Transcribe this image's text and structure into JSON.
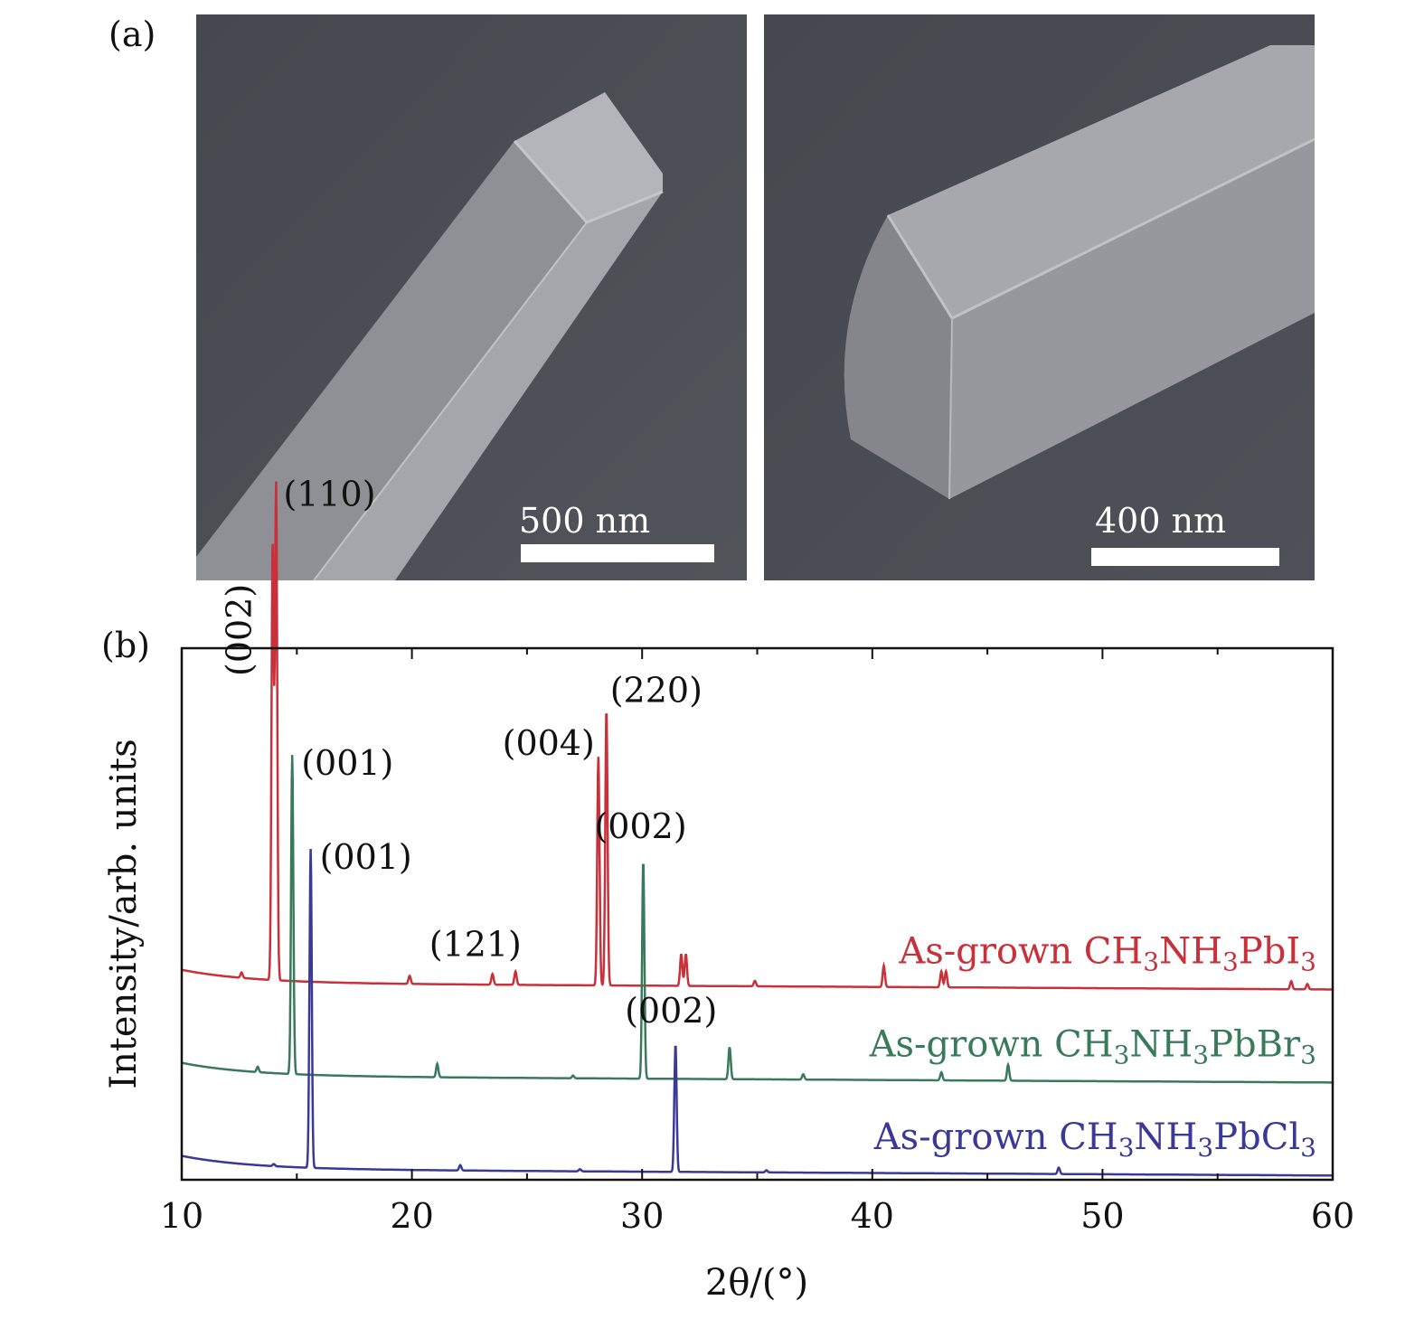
{
  "panel_a": {
    "label": "(a)",
    "images": [
      {
        "scale_label": "500 nm",
        "subject": "rectangular-microwire-sem-image"
      },
      {
        "scale_label": "400 nm",
        "subject": "rectangular-microwire-end-sem-image"
      }
    ]
  },
  "panel_b": {
    "label": "(b)"
  },
  "chart_data": {
    "type": "line",
    "xlabel": "2θ/(°)",
    "ylabel": "Intensity/arb. units",
    "xlim": [
      10,
      60
    ],
    "xticks": [
      10,
      20,
      30,
      40,
      50,
      60
    ],
    "grid": false,
    "series": [
      {
        "name": "As-grown CH3NH3PbI3",
        "label_main": "As-grown CH",
        "label_parts": [
          "As-grown CH",
          "3",
          "NH",
          "3",
          "PbI",
          "3"
        ],
        "color": "#c8303a",
        "baseline": 0.37,
        "peaks": [
          {
            "x": 12.6,
            "h": 0.01
          },
          {
            "x": 13.95,
            "h": 0.82
          },
          {
            "x": 14.1,
            "h": 0.93
          },
          {
            "x": 19.9,
            "h": 0.015
          },
          {
            "x": 23.5,
            "h": 0.02
          },
          {
            "x": 24.5,
            "h": 0.025
          },
          {
            "x": 28.1,
            "h": 0.43
          },
          {
            "x": 28.45,
            "h": 0.52
          },
          {
            "x": 31.7,
            "h": 0.06
          },
          {
            "x": 31.9,
            "h": 0.06
          },
          {
            "x": 34.9,
            "h": 0.01
          },
          {
            "x": 40.5,
            "h": 0.04
          },
          {
            "x": 43.0,
            "h": 0.03
          },
          {
            "x": 43.2,
            "h": 0.03
          },
          {
            "x": 58.2,
            "h": 0.015
          },
          {
            "x": 58.9,
            "h": 0.01
          }
        ],
        "peak_labels": [
          {
            "text": "(002)",
            "x": 13.95,
            "rotated": true
          },
          {
            "text": "(110)",
            "x": 14.1
          },
          {
            "text": "(121)",
            "x": 23.5
          },
          {
            "text": "(004)",
            "x": 28.1
          },
          {
            "text": "(220)",
            "x": 28.45
          }
        ]
      },
      {
        "name": "As-grown CH3NH3PbBr3",
        "label_parts": [
          "As-grown CH",
          "3",
          "NH",
          "3",
          "PbBr",
          "3"
        ],
        "color": "#3a7a5c",
        "baseline": 0.195,
        "peaks": [
          {
            "x": 13.3,
            "h": 0.01
          },
          {
            "x": 14.8,
            "h": 0.6
          },
          {
            "x": 21.1,
            "h": 0.025
          },
          {
            "x": 27.0,
            "h": 0.005
          },
          {
            "x": 30.05,
            "h": 0.41
          },
          {
            "x": 33.8,
            "h": 0.06
          },
          {
            "x": 37.0,
            "h": 0.01
          },
          {
            "x": 43.0,
            "h": 0.015
          },
          {
            "x": 45.9,
            "h": 0.03
          }
        ],
        "peak_labels": [
          {
            "text": "(001)",
            "x": 14.8
          },
          {
            "text": "(002)",
            "x": 30.05
          }
        ]
      },
      {
        "name": "As-grown CH3NH3PbCl3",
        "label_parts": [
          "As-grown CH",
          "3",
          "NH",
          "3",
          "PbCl",
          "3"
        ],
        "color": "#3a3a96",
        "baseline": 0.02,
        "peaks": [
          {
            "x": 14.0,
            "h": 0.004
          },
          {
            "x": 15.6,
            "h": 0.6
          },
          {
            "x": 22.1,
            "h": 0.01
          },
          {
            "x": 27.3,
            "h": 0.004
          },
          {
            "x": 31.45,
            "h": 0.24
          },
          {
            "x": 35.4,
            "h": 0.004
          },
          {
            "x": 48.1,
            "h": 0.012
          }
        ],
        "peak_labels": [
          {
            "text": "(001)",
            "x": 15.6
          },
          {
            "text": "(002)",
            "x": 31.45
          }
        ]
      }
    ]
  }
}
